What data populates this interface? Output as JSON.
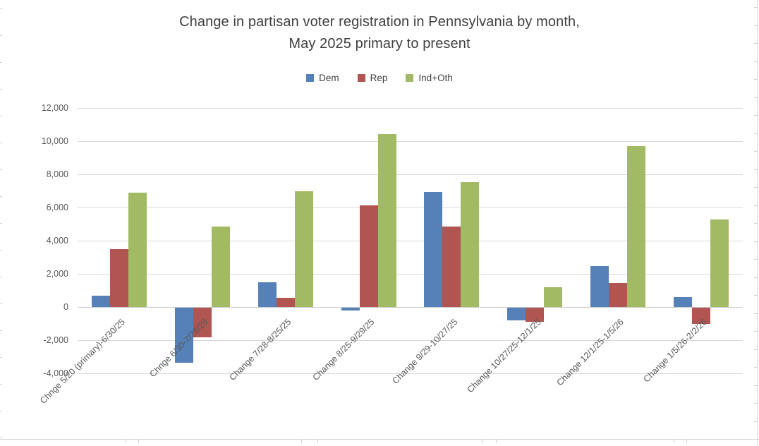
{
  "chart_data": {
    "type": "bar",
    "title_line1": "Change in partisan voter registration in Pennsylvania by month,",
    "title_line2": "May 2025 primary to present",
    "legend_position": "top",
    "grid": true,
    "ylim": [
      -4000,
      12000
    ],
    "ytick_step": 2000,
    "ytick_labels": [
      "12,000",
      "10,000",
      "8,000",
      "6,000",
      "4,000",
      "2,000",
      "0",
      "-2,000",
      "-4,000"
    ],
    "xlabel": "",
    "ylabel": "",
    "categories": [
      "Chnge 5/20 (primary)-6/30/25",
      "Chnge 6/30-7/28/25",
      "Change 7/28-8/25/25",
      "Change 8/25-9/29/25",
      "Change 9/29-10/27/25",
      "Change 10/27/25-12/1/25",
      "Change 12/1/25-1/5/26",
      "Change 1/5/26-2/2/26"
    ],
    "series": [
      {
        "name": "Dem",
        "color": "#5580b8",
        "values": [
          700,
          -3300,
          1500,
          -150,
          6950,
          -750,
          2450,
          600
        ]
      },
      {
        "name": "Rep",
        "color": "#b05551",
        "values": [
          3500,
          -1800,
          550,
          6150,
          4850,
          -850,
          1450,
          -1000
        ]
      },
      {
        "name": "Ind+Oth",
        "color": "#a3ba64",
        "values": [
          6900,
          4850,
          7000,
          10450,
          7550,
          1200,
          9700,
          5300
        ]
      }
    ]
  },
  "colors": {
    "text": "#595959",
    "title": "#404040",
    "gridline": "#d9d9d9",
    "axis_line": "#c9c9c9"
  }
}
